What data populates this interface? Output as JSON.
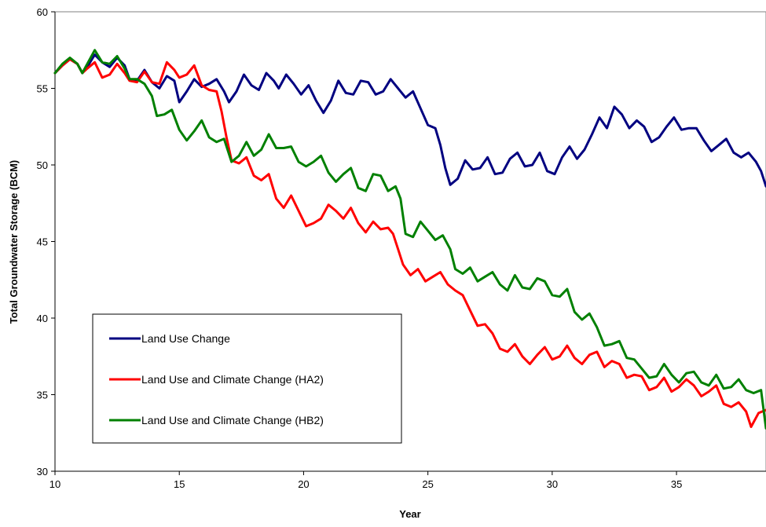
{
  "chart_data": {
    "type": "line",
    "title": "",
    "xlabel": "Year",
    "ylabel": "Total Groundwater Storage (BCM)",
    "xlim": [
      10,
      38.6
    ],
    "ylim": [
      30,
      60
    ],
    "x_ticks": [
      10,
      15,
      20,
      25,
      30,
      35
    ],
    "y_ticks": [
      30,
      35,
      40,
      45,
      50,
      55,
      60
    ],
    "grid": false,
    "legend_placement": "lower-left",
    "series": [
      {
        "name": "Land Use Change",
        "color": "#000080",
        "points": [
          [
            10,
            56.0
          ],
          [
            10.3,
            56.5
          ],
          [
            10.6,
            56.9
          ],
          [
            10.9,
            56.6
          ],
          [
            11.1,
            56.0
          ],
          [
            11.3,
            56.4
          ],
          [
            11.6,
            57.2
          ],
          [
            11.9,
            56.7
          ],
          [
            12.2,
            56.4
          ],
          [
            12.5,
            57.0
          ],
          [
            12.8,
            56.5
          ],
          [
            13.0,
            55.6
          ],
          [
            13.3,
            55.5
          ],
          [
            13.6,
            56.2
          ],
          [
            13.9,
            55.4
          ],
          [
            14.2,
            55.0
          ],
          [
            14.5,
            55.8
          ],
          [
            14.8,
            55.5
          ],
          [
            15.0,
            54.1
          ],
          [
            15.3,
            54.8
          ],
          [
            15.6,
            55.6
          ],
          [
            15.9,
            55.1
          ],
          [
            16.2,
            55.3
          ],
          [
            16.5,
            55.6
          ],
          [
            16.8,
            54.8
          ],
          [
            17.0,
            54.1
          ],
          [
            17.3,
            54.8
          ],
          [
            17.6,
            55.9
          ],
          [
            17.9,
            55.2
          ],
          [
            18.2,
            54.9
          ],
          [
            18.5,
            56.0
          ],
          [
            18.8,
            55.5
          ],
          [
            19.0,
            55.0
          ],
          [
            19.3,
            55.9
          ],
          [
            19.6,
            55.3
          ],
          [
            19.9,
            54.6
          ],
          [
            20.2,
            55.2
          ],
          [
            20.5,
            54.2
          ],
          [
            20.8,
            53.4
          ],
          [
            21.1,
            54.2
          ],
          [
            21.4,
            55.5
          ],
          [
            21.7,
            54.7
          ],
          [
            22.0,
            54.6
          ],
          [
            22.3,
            55.5
          ],
          [
            22.6,
            55.4
          ],
          [
            22.9,
            54.6
          ],
          [
            23.2,
            54.8
          ],
          [
            23.5,
            55.6
          ],
          [
            23.8,
            55.0
          ],
          [
            24.1,
            54.4
          ],
          [
            24.4,
            54.8
          ],
          [
            24.7,
            53.7
          ],
          [
            25.0,
            52.6
          ],
          [
            25.3,
            52.4
          ],
          [
            25.5,
            51.3
          ],
          [
            25.7,
            49.8
          ],
          [
            25.9,
            48.7
          ],
          [
            26.2,
            49.1
          ],
          [
            26.5,
            50.3
          ],
          [
            26.8,
            49.7
          ],
          [
            27.1,
            49.8
          ],
          [
            27.4,
            50.5
          ],
          [
            27.7,
            49.4
          ],
          [
            28.0,
            49.5
          ],
          [
            28.3,
            50.4
          ],
          [
            28.6,
            50.8
          ],
          [
            28.9,
            49.9
          ],
          [
            29.2,
            50.0
          ],
          [
            29.5,
            50.8
          ],
          [
            29.8,
            49.6
          ],
          [
            30.1,
            49.4
          ],
          [
            30.4,
            50.5
          ],
          [
            30.7,
            51.2
          ],
          [
            31.0,
            50.4
          ],
          [
            31.3,
            51.0
          ],
          [
            31.6,
            52.0
          ],
          [
            31.9,
            53.1
          ],
          [
            32.2,
            52.4
          ],
          [
            32.5,
            53.8
          ],
          [
            32.8,
            53.3
          ],
          [
            33.1,
            52.4
          ],
          [
            33.4,
            52.9
          ],
          [
            33.7,
            52.5
          ],
          [
            34.0,
            51.5
          ],
          [
            34.3,
            51.8
          ],
          [
            34.6,
            52.5
          ],
          [
            34.9,
            53.1
          ],
          [
            35.2,
            52.3
          ],
          [
            35.5,
            52.4
          ],
          [
            35.8,
            52.4
          ],
          [
            36.1,
            51.6
          ],
          [
            36.4,
            50.9
          ],
          [
            36.7,
            51.3
          ],
          [
            37.0,
            51.7
          ],
          [
            37.3,
            50.8
          ],
          [
            37.6,
            50.5
          ],
          [
            37.9,
            50.8
          ],
          [
            38.2,
            50.2
          ],
          [
            38.4,
            49.6
          ],
          [
            38.6,
            48.6
          ]
        ]
      },
      {
        "name": "Land Use and Climate Change (HA2)",
        "color": "#ff0000",
        "points": [
          [
            10,
            56.0
          ],
          [
            10.3,
            56.5
          ],
          [
            10.6,
            56.9
          ],
          [
            10.9,
            56.6
          ],
          [
            11.1,
            56.0
          ],
          [
            11.3,
            56.3
          ],
          [
            11.6,
            56.7
          ],
          [
            11.9,
            55.7
          ],
          [
            12.2,
            55.9
          ],
          [
            12.5,
            56.6
          ],
          [
            12.8,
            56.0
          ],
          [
            13.0,
            55.5
          ],
          [
            13.3,
            55.4
          ],
          [
            13.6,
            56.1
          ],
          [
            13.9,
            55.4
          ],
          [
            14.2,
            55.3
          ],
          [
            14.5,
            56.7
          ],
          [
            14.8,
            56.2
          ],
          [
            15.0,
            55.7
          ],
          [
            15.3,
            55.9
          ],
          [
            15.6,
            56.5
          ],
          [
            15.9,
            55.2
          ],
          [
            16.2,
            54.9
          ],
          [
            16.5,
            54.8
          ],
          [
            16.7,
            53.5
          ],
          [
            16.9,
            51.8
          ],
          [
            17.1,
            50.3
          ],
          [
            17.4,
            50.1
          ],
          [
            17.7,
            50.5
          ],
          [
            18.0,
            49.3
          ],
          [
            18.3,
            49.0
          ],
          [
            18.6,
            49.4
          ],
          [
            18.9,
            47.8
          ],
          [
            19.2,
            47.2
          ],
          [
            19.5,
            48.0
          ],
          [
            19.8,
            47.0
          ],
          [
            20.1,
            46.0
          ],
          [
            20.4,
            46.2
          ],
          [
            20.7,
            46.5
          ],
          [
            21.0,
            47.4
          ],
          [
            21.3,
            47.0
          ],
          [
            21.6,
            46.5
          ],
          [
            21.9,
            47.2
          ],
          [
            22.2,
            46.2
          ],
          [
            22.5,
            45.6
          ],
          [
            22.8,
            46.3
          ],
          [
            23.1,
            45.8
          ],
          [
            23.4,
            45.9
          ],
          [
            23.6,
            45.5
          ],
          [
            23.8,
            44.5
          ],
          [
            24.0,
            43.5
          ],
          [
            24.3,
            42.8
          ],
          [
            24.6,
            43.2
          ],
          [
            24.9,
            42.4
          ],
          [
            25.2,
            42.7
          ],
          [
            25.5,
            43.0
          ],
          [
            25.8,
            42.2
          ],
          [
            26.1,
            41.8
          ],
          [
            26.4,
            41.5
          ],
          [
            26.7,
            40.5
          ],
          [
            27.0,
            39.5
          ],
          [
            27.3,
            39.6
          ],
          [
            27.6,
            39.0
          ],
          [
            27.9,
            38.0
          ],
          [
            28.2,
            37.8
          ],
          [
            28.5,
            38.3
          ],
          [
            28.8,
            37.5
          ],
          [
            29.1,
            37.0
          ],
          [
            29.4,
            37.6
          ],
          [
            29.7,
            38.1
          ],
          [
            30.0,
            37.3
          ],
          [
            30.3,
            37.5
          ],
          [
            30.6,
            38.2
          ],
          [
            30.9,
            37.4
          ],
          [
            31.2,
            37.0
          ],
          [
            31.5,
            37.6
          ],
          [
            31.8,
            37.8
          ],
          [
            32.1,
            36.8
          ],
          [
            32.4,
            37.2
          ],
          [
            32.7,
            37.0
          ],
          [
            33.0,
            36.1
          ],
          [
            33.3,
            36.3
          ],
          [
            33.6,
            36.2
          ],
          [
            33.9,
            35.3
          ],
          [
            34.2,
            35.5
          ],
          [
            34.5,
            36.1
          ],
          [
            34.8,
            35.2
          ],
          [
            35.1,
            35.5
          ],
          [
            35.4,
            36.0
          ],
          [
            35.7,
            35.6
          ],
          [
            36.0,
            34.9
          ],
          [
            36.3,
            35.2
          ],
          [
            36.6,
            35.6
          ],
          [
            36.9,
            34.4
          ],
          [
            37.2,
            34.2
          ],
          [
            37.5,
            34.5
          ],
          [
            37.8,
            33.9
          ],
          [
            38.0,
            32.9
          ],
          [
            38.3,
            33.8
          ],
          [
            38.6,
            34.0
          ]
        ]
      },
      {
        "name": "Land Use and Climate Change (HB2)",
        "color": "#008000",
        "points": [
          [
            10,
            56.0
          ],
          [
            10.3,
            56.6
          ],
          [
            10.6,
            57.0
          ],
          [
            10.9,
            56.6
          ],
          [
            11.1,
            56.0
          ],
          [
            11.3,
            56.6
          ],
          [
            11.6,
            57.5
          ],
          [
            11.9,
            56.7
          ],
          [
            12.2,
            56.6
          ],
          [
            12.5,
            57.1
          ],
          [
            12.8,
            56.3
          ],
          [
            13.0,
            55.6
          ],
          [
            13.3,
            55.6
          ],
          [
            13.6,
            55.3
          ],
          [
            13.9,
            54.5
          ],
          [
            14.1,
            53.2
          ],
          [
            14.4,
            53.3
          ],
          [
            14.7,
            53.6
          ],
          [
            15.0,
            52.3
          ],
          [
            15.3,
            51.6
          ],
          [
            15.6,
            52.2
          ],
          [
            15.9,
            52.9
          ],
          [
            16.2,
            51.8
          ],
          [
            16.5,
            51.5
          ],
          [
            16.8,
            51.7
          ],
          [
            17.1,
            50.2
          ],
          [
            17.4,
            50.6
          ],
          [
            17.7,
            51.5
          ],
          [
            18.0,
            50.6
          ],
          [
            18.3,
            51.0
          ],
          [
            18.6,
            52.0
          ],
          [
            18.9,
            51.1
          ],
          [
            19.2,
            51.1
          ],
          [
            19.5,
            51.2
          ],
          [
            19.8,
            50.2
          ],
          [
            20.1,
            49.9
          ],
          [
            20.4,
            50.2
          ],
          [
            20.7,
            50.6
          ],
          [
            21.0,
            49.5
          ],
          [
            21.3,
            48.9
          ],
          [
            21.6,
            49.4
          ],
          [
            21.9,
            49.8
          ],
          [
            22.2,
            48.5
          ],
          [
            22.5,
            48.3
          ],
          [
            22.8,
            49.4
          ],
          [
            23.1,
            49.3
          ],
          [
            23.4,
            48.3
          ],
          [
            23.7,
            48.6
          ],
          [
            23.9,
            47.8
          ],
          [
            24.1,
            45.5
          ],
          [
            24.4,
            45.3
          ],
          [
            24.7,
            46.3
          ],
          [
            25.0,
            45.7
          ],
          [
            25.3,
            45.1
          ],
          [
            25.6,
            45.4
          ],
          [
            25.9,
            44.5
          ],
          [
            26.1,
            43.2
          ],
          [
            26.4,
            42.9
          ],
          [
            26.7,
            43.3
          ],
          [
            27.0,
            42.4
          ],
          [
            27.3,
            42.7
          ],
          [
            27.6,
            43.0
          ],
          [
            27.9,
            42.2
          ],
          [
            28.2,
            41.8
          ],
          [
            28.5,
            42.8
          ],
          [
            28.8,
            42.0
          ],
          [
            29.1,
            41.9
          ],
          [
            29.4,
            42.6
          ],
          [
            29.7,
            42.4
          ],
          [
            30.0,
            41.5
          ],
          [
            30.3,
            41.4
          ],
          [
            30.6,
            41.9
          ],
          [
            30.9,
            40.4
          ],
          [
            31.2,
            39.9
          ],
          [
            31.5,
            40.3
          ],
          [
            31.8,
            39.4
          ],
          [
            32.1,
            38.2
          ],
          [
            32.4,
            38.3
          ],
          [
            32.7,
            38.5
          ],
          [
            33.0,
            37.4
          ],
          [
            33.3,
            37.3
          ],
          [
            33.6,
            36.7
          ],
          [
            33.9,
            36.1
          ],
          [
            34.2,
            36.2
          ],
          [
            34.5,
            37.0
          ],
          [
            34.8,
            36.3
          ],
          [
            35.1,
            35.8
          ],
          [
            35.4,
            36.4
          ],
          [
            35.7,
            36.5
          ],
          [
            36.0,
            35.8
          ],
          [
            36.3,
            35.6
          ],
          [
            36.6,
            36.3
          ],
          [
            36.9,
            35.4
          ],
          [
            37.2,
            35.5
          ],
          [
            37.5,
            36.0
          ],
          [
            37.8,
            35.3
          ],
          [
            38.1,
            35.1
          ],
          [
            38.4,
            35.3
          ],
          [
            38.6,
            32.8
          ]
        ]
      }
    ]
  }
}
